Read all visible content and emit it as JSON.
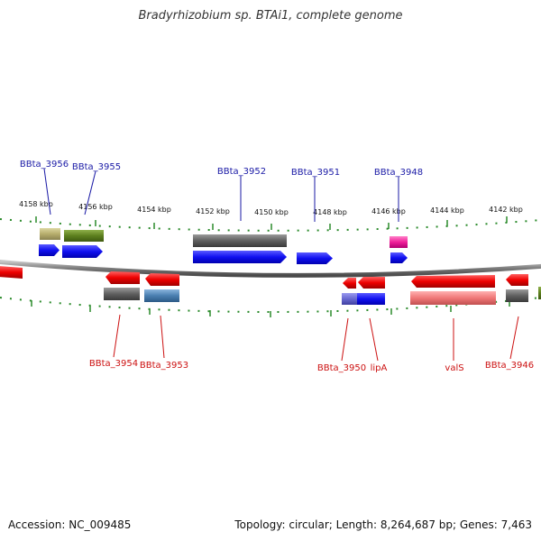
{
  "title": "Bradyrhizobium sp. BTAi1, complete genome",
  "footer": {
    "accession": "Accession: NC_009485",
    "summary": "Topology: circular; Length: 8,264,687 bp; Genes: 7,463"
  },
  "colors": {
    "upper_label": "#1a1aa6",
    "lower_label": "#cc1111",
    "tick": "#2a8a2a",
    "backbone": "#8a8a8a"
  },
  "scale_ticks": [
    {
      "label": "4158 kbp"
    },
    {
      "label": "4156 kbp"
    },
    {
      "label": "4154 kbp"
    },
    {
      "label": "4152 kbp"
    },
    {
      "label": "4150 kbp"
    },
    {
      "label": "4148 kbp"
    },
    {
      "label": "4146 kbp"
    },
    {
      "label": "4144 kbp"
    },
    {
      "label": "4142 kbp"
    }
  ],
  "upper_labels": [
    "BBta_3956",
    "BBta_3955",
    "BBta_3952",
    "BBta_3951",
    "BBta_3948"
  ],
  "lower_labels": [
    "BBta_3954",
    "BBta_3953",
    "BBta_3950",
    "lipA",
    "valS",
    "BBta_3946"
  ]
}
